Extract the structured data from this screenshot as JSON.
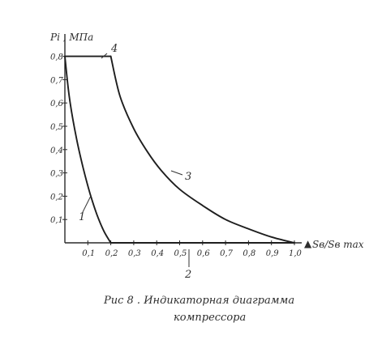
{
  "chart_data": {
    "type": "line",
    "ylabel": "Pi , МПа",
    "xlabel": "Sв/Sв max",
    "x_ticks": [
      "0,1",
      "0,2",
      "0,3",
      "0,4",
      "0,5",
      "0,6",
      "0,7",
      "0,8",
      "0,9",
      "1,0"
    ],
    "y_ticks": [
      "0,1",
      "0,2",
      "0,3",
      "0,4",
      "0,5",
      "0,6",
      "0,7",
      "0,8"
    ],
    "xlim": [
      0,
      1.05
    ],
    "ylim": [
      0,
      0.8
    ],
    "series": [
      {
        "curve_label": "1",
        "x": [
          0.0,
          0.02,
          0.05,
          0.08,
          0.11,
          0.14,
          0.17,
          0.2
        ],
        "y": [
          0.8,
          0.62,
          0.45,
          0.32,
          0.21,
          0.12,
          0.05,
          0.0
        ]
      },
      {
        "curve_label": "4",
        "x": [
          0.0,
          0.2
        ],
        "y": [
          0.8,
          0.8
        ]
      },
      {
        "curve_label": "3",
        "x": [
          0.2,
          0.24,
          0.3,
          0.36,
          0.42,
          0.5,
          0.6,
          0.7,
          0.8,
          0.9,
          1.0
        ],
        "y": [
          0.8,
          0.63,
          0.49,
          0.39,
          0.31,
          0.23,
          0.16,
          0.1,
          0.06,
          0.025,
          0.0
        ]
      },
      {
        "curve_label": "2",
        "x": [
          0.2,
          1.0
        ],
        "y": [
          0.0,
          0.0
        ]
      }
    ]
  },
  "caption": {
    "line1": "Рис 8 . Индикаторная диаграмма",
    "line2": "компрессора"
  }
}
